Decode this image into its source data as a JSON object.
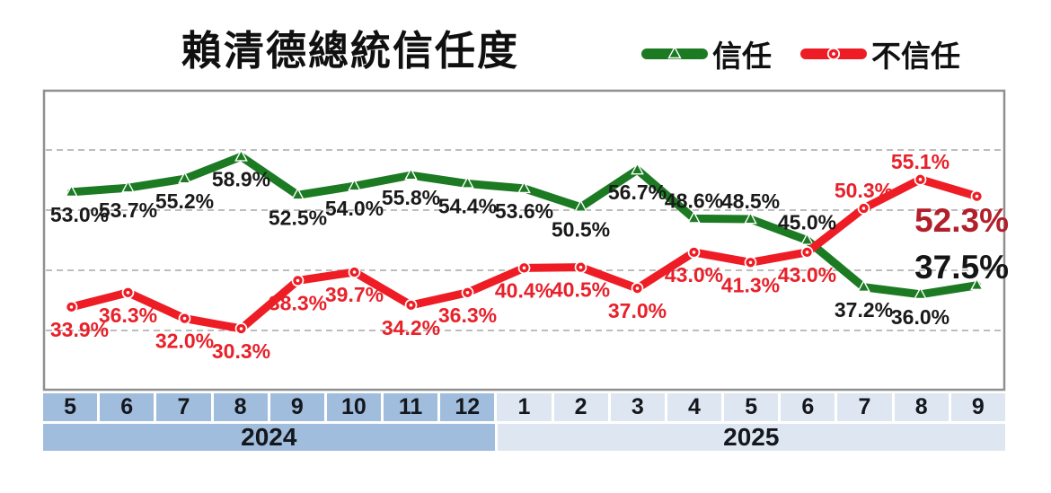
{
  "title": "賴清德總統信任度",
  "legend": {
    "trust": "信任",
    "distrust": "不信任"
  },
  "colors": {
    "trust": "#1c7a23",
    "distrust": "#ee1c24",
    "trust_label": "#1a1a1a",
    "distrust_label": "#e8212a",
    "trust_final_label": "#151515",
    "distrust_final_label": "#b1202a",
    "band_2024": "#a1bddd",
    "band_2025": "#dee7f1",
    "grid": "#bdbdbd",
    "border": "#909090",
    "month_text": "#14171c"
  },
  "x_axis": {
    "groups": [
      {
        "year": "2024",
        "months": [
          "5",
          "6",
          "7",
          "8",
          "9",
          "10",
          "11",
          "12"
        ]
      },
      {
        "year": "2025",
        "months": [
          "1",
          "2",
          "3",
          "4",
          "5",
          "6",
          "7",
          "8",
          "9"
        ]
      }
    ]
  },
  "chart_data": {
    "type": "line",
    "title": "賴清德總統信任度",
    "x_labels": [
      "2024-5",
      "2024-6",
      "2024-7",
      "2024-8",
      "2024-9",
      "2024-10",
      "2024-11",
      "2024-12",
      "2025-1",
      "2025-2",
      "2025-3",
      "2025-4",
      "2025-5",
      "2025-6",
      "2025-7",
      "2025-8",
      "2025-9"
    ],
    "series": [
      {
        "name": "信任",
        "marker": "triangle",
        "values": [
          53.0,
          53.7,
          55.2,
          58.9,
          52.5,
          54.0,
          55.8,
          54.4,
          53.6,
          50.5,
          56.7,
          48.6,
          48.5,
          45.0,
          37.2,
          36.0,
          37.5
        ]
      },
      {
        "name": "不信任",
        "marker": "circle",
        "values": [
          33.9,
          36.3,
          32.0,
          30.3,
          38.3,
          39.7,
          34.2,
          36.3,
          40.4,
          40.5,
          37.0,
          43.0,
          41.3,
          43.0,
          50.3,
          55.1,
          52.3
        ]
      }
    ],
    "value_label_format": "0.0%",
    "final_labels": [
      {
        "series": "信任",
        "text": "37.5%"
      },
      {
        "series": "不信任",
        "text": "52.3%"
      }
    ],
    "ylim": [
      20,
      70
    ],
    "gridlines": [
      30,
      40,
      50,
      60
    ],
    "grid_style": "dashed horizontal",
    "legend_position": "top-right"
  }
}
